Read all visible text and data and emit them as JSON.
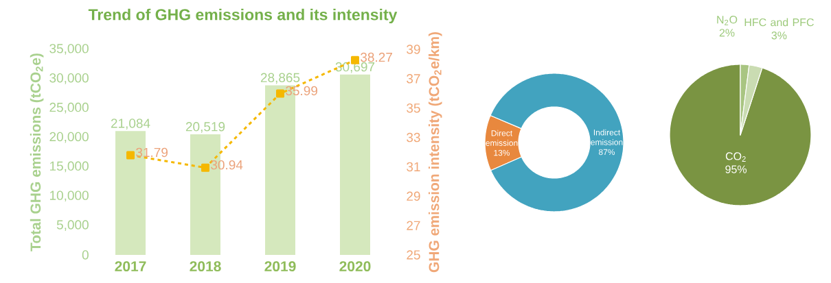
{
  "chart_data": [
    {
      "type": "bar",
      "title": "Trend of GHG emissions and its intensity",
      "ylabel": "Total GHG emissions (tCO$_{2}$e)",
      "y2label": "GHG emission intensity (tCO$_{2}$e/km)",
      "categories": [
        "2017",
        "2018",
        "2019",
        "2020"
      ],
      "series": [
        {
          "type": "bar",
          "color": "#d5e8bd",
          "values": [
            21084,
            20519,
            28865,
            30697
          ],
          "value_labels": [
            "21,084",
            "20,519",
            "28,865",
            "30,697"
          ]
        },
        {
          "type": "line",
          "axis": "y2",
          "color": "#f5b800",
          "values": [
            31.79,
            30.94,
            35.99,
            38.27
          ],
          "value_labels": [
            "31.79",
            "30.94",
            "35.99",
            "38.27"
          ]
        }
      ],
      "marker": "square",
      "line_style": "dashed",
      "ylim": [
        0,
        35000
      ],
      "yticks": [
        {
          "value": 0,
          "label": "0"
        },
        {
          "value": 5000,
          "label": "5,000"
        },
        {
          "value": 10000,
          "label": "10,000"
        },
        {
          "value": 15000,
          "label": "15,000"
        },
        {
          "value": 20000,
          "label": "20,000"
        },
        {
          "value": 25000,
          "label": "25,000"
        },
        {
          "value": 30000,
          "label": "30,000"
        },
        {
          "value": 35000,
          "label": "35,000"
        }
      ],
      "y2lim": [
        25,
        39
      ],
      "y2ticks": [
        25,
        27,
        29,
        31,
        33,
        35,
        37,
        39
      ]
    },
    {
      "type": "donut",
      "categories": [
        "Direct emission",
        "Indirect emission"
      ],
      "values": [
        13,
        87
      ],
      "value_labels": [
        "13%",
        "87%"
      ],
      "colors": [
        "#e8883e",
        "#42a3bf"
      ]
    },
    {
      "type": "pie",
      "categories": [
        "CO$_{2}$",
        "N$_{2}$O",
        "HFC and PFC"
      ],
      "values": [
        95,
        2,
        3
      ],
      "value_labels": [
        "95%",
        "2%",
        "3%"
      ],
      "colors": [
        "#7a9442",
        "#a9c582",
        "#cadcb2"
      ]
    }
  ]
}
